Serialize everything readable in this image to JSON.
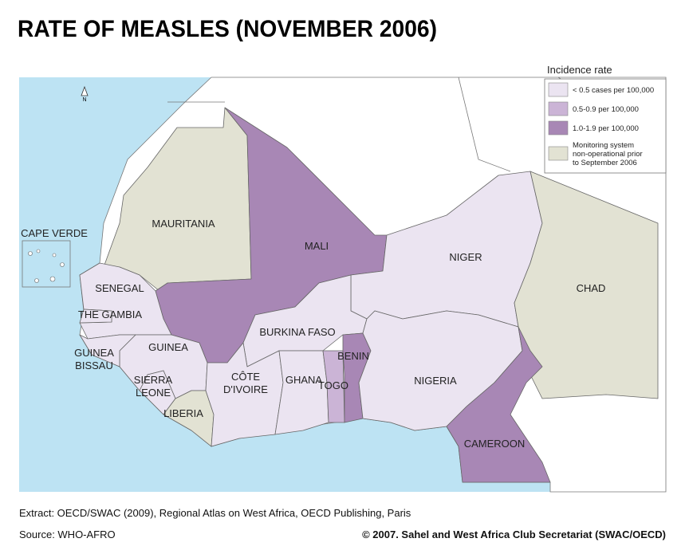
{
  "title": "RATE OF MEASLES (NOVEMBER 2006)",
  "legend": {
    "title": "Incidence rate",
    "items": [
      {
        "lines": [
          "< 0.5 cases per 100,000"
        ],
        "color": "#ebe4f1"
      },
      {
        "lines": [
          "0.5-0.9 per 100,000"
        ],
        "color": "#cbb4d6"
      },
      {
        "lines": [
          "1.0-1.9 per 100,000"
        ],
        "color": "#a887b5"
      },
      {
        "lines": [
          "Monitoring system",
          "non-operational prior",
          "to September 2006"
        ],
        "color": "#e2e2d3"
      }
    ]
  },
  "north_label": "N",
  "cape_verde": "CAPE VERDE",
  "countries": [
    {
      "lines": [
        "MAURITANIA"
      ],
      "category": 3
    },
    {
      "lines": [
        "MALI"
      ],
      "category": 2
    },
    {
      "lines": [
        "NIGER"
      ],
      "category": 0
    },
    {
      "lines": [
        "CHAD"
      ],
      "category": 3
    },
    {
      "lines": [
        "SENEGAL"
      ],
      "category": 0
    },
    {
      "lines": [
        "THE GAMBIA"
      ],
      "category": 0
    },
    {
      "lines": [
        "GUINEA"
      ],
      "category": 0
    },
    {
      "lines": [
        "GUINEA",
        "BISSAU"
      ],
      "category": 0
    },
    {
      "lines": [
        "SIERRA",
        "LEONE"
      ],
      "category": 0
    },
    {
      "lines": [
        "LIBERIA"
      ],
      "category": 3
    },
    {
      "lines": [
        "BURKINA FASO"
      ],
      "category": 0
    },
    {
      "lines": [
        "CÔTE",
        "D'IVOIRE"
      ],
      "category": 0
    },
    {
      "lines": [
        "GHANA"
      ],
      "category": 0
    },
    {
      "lines": [
        "TOGO"
      ],
      "category": 1
    },
    {
      "lines": [
        "BENIN"
      ],
      "category": 2
    },
    {
      "lines": [
        "NIGERIA"
      ],
      "category": 0
    },
    {
      "lines": [
        "CAMEROON"
      ],
      "category": 2
    }
  ],
  "footer": {
    "extract": "Extract: OECD/SWAC (2009), Regional Atlas on West Africa, OECD Publishing, Paris",
    "source": "Source: WHO-AFRO",
    "copyright": "© 2007. Sahel and West Africa Club Secretariat (SWAC/OECD)"
  }
}
